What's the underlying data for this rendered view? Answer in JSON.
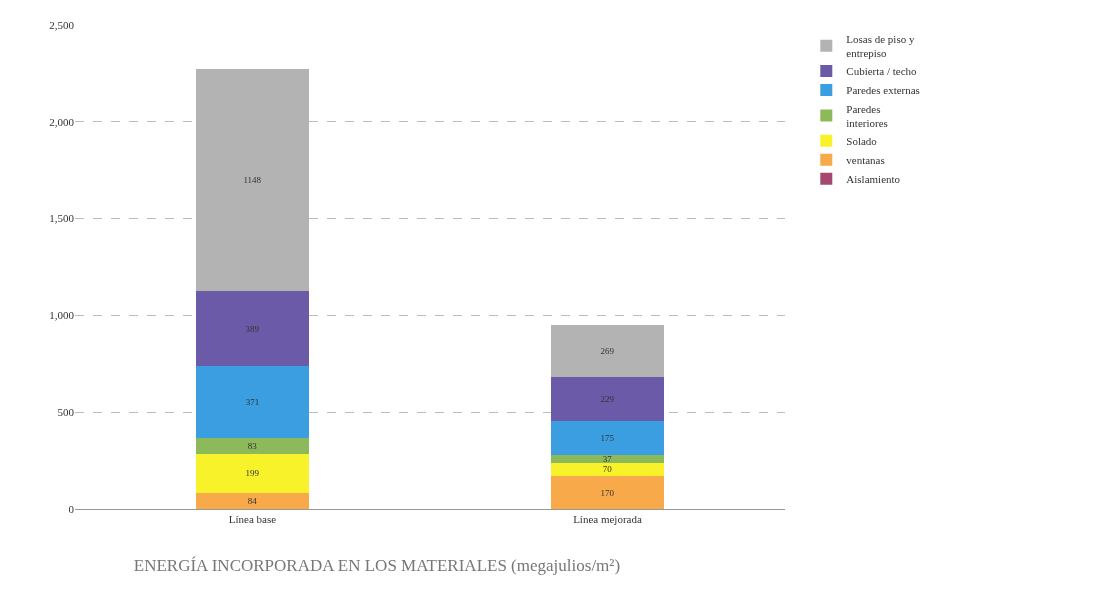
{
  "chart_data": {
    "type": "bar",
    "title": "ENERGÍA INCORPORADA EN LOS MATERIALES (megajulios/m²)",
    "categories": [
      "Línea base",
      "Línea mejorada"
    ],
    "stacked": true,
    "series": [
      {
        "name": "Aislamiento",
        "color": "#a5476e",
        "values": [
          null,
          null
        ]
      },
      {
        "name": "ventanas",
        "color": "#f8a94a",
        "values": [
          84,
          170
        ]
      },
      {
        "name": "Solado",
        "color": "#f8f22a",
        "values": [
          199,
          70
        ]
      },
      {
        "name": "Paredes interiores",
        "color": "#8cba5a",
        "values": [
          83,
          37
        ]
      },
      {
        "name": "Paredes externas",
        "color": "#3a9ee0",
        "values": [
          371,
          175
        ]
      },
      {
        "name": "Cubierta / techo",
        "color": "#6a5aa8",
        "values": [
          389,
          229
        ]
      },
      {
        "name": "Losas de piso y entrepiso",
        "color": "#b3b3b3",
        "values": [
          1148,
          269
        ]
      }
    ],
    "ylim": [
      0,
      2500
    ],
    "yticks": [
      {
        "value": 0,
        "label": "0"
      },
      {
        "value": 500,
        "label": "500"
      },
      {
        "value": 1000,
        "label": "1,000"
      },
      {
        "value": 1500,
        "label": "1,500"
      },
      {
        "value": 2000,
        "label": "2,000"
      },
      {
        "value": 2500,
        "label": "2,500"
      }
    ],
    "grid": "y",
    "legend": "right",
    "data_labels": true
  }
}
